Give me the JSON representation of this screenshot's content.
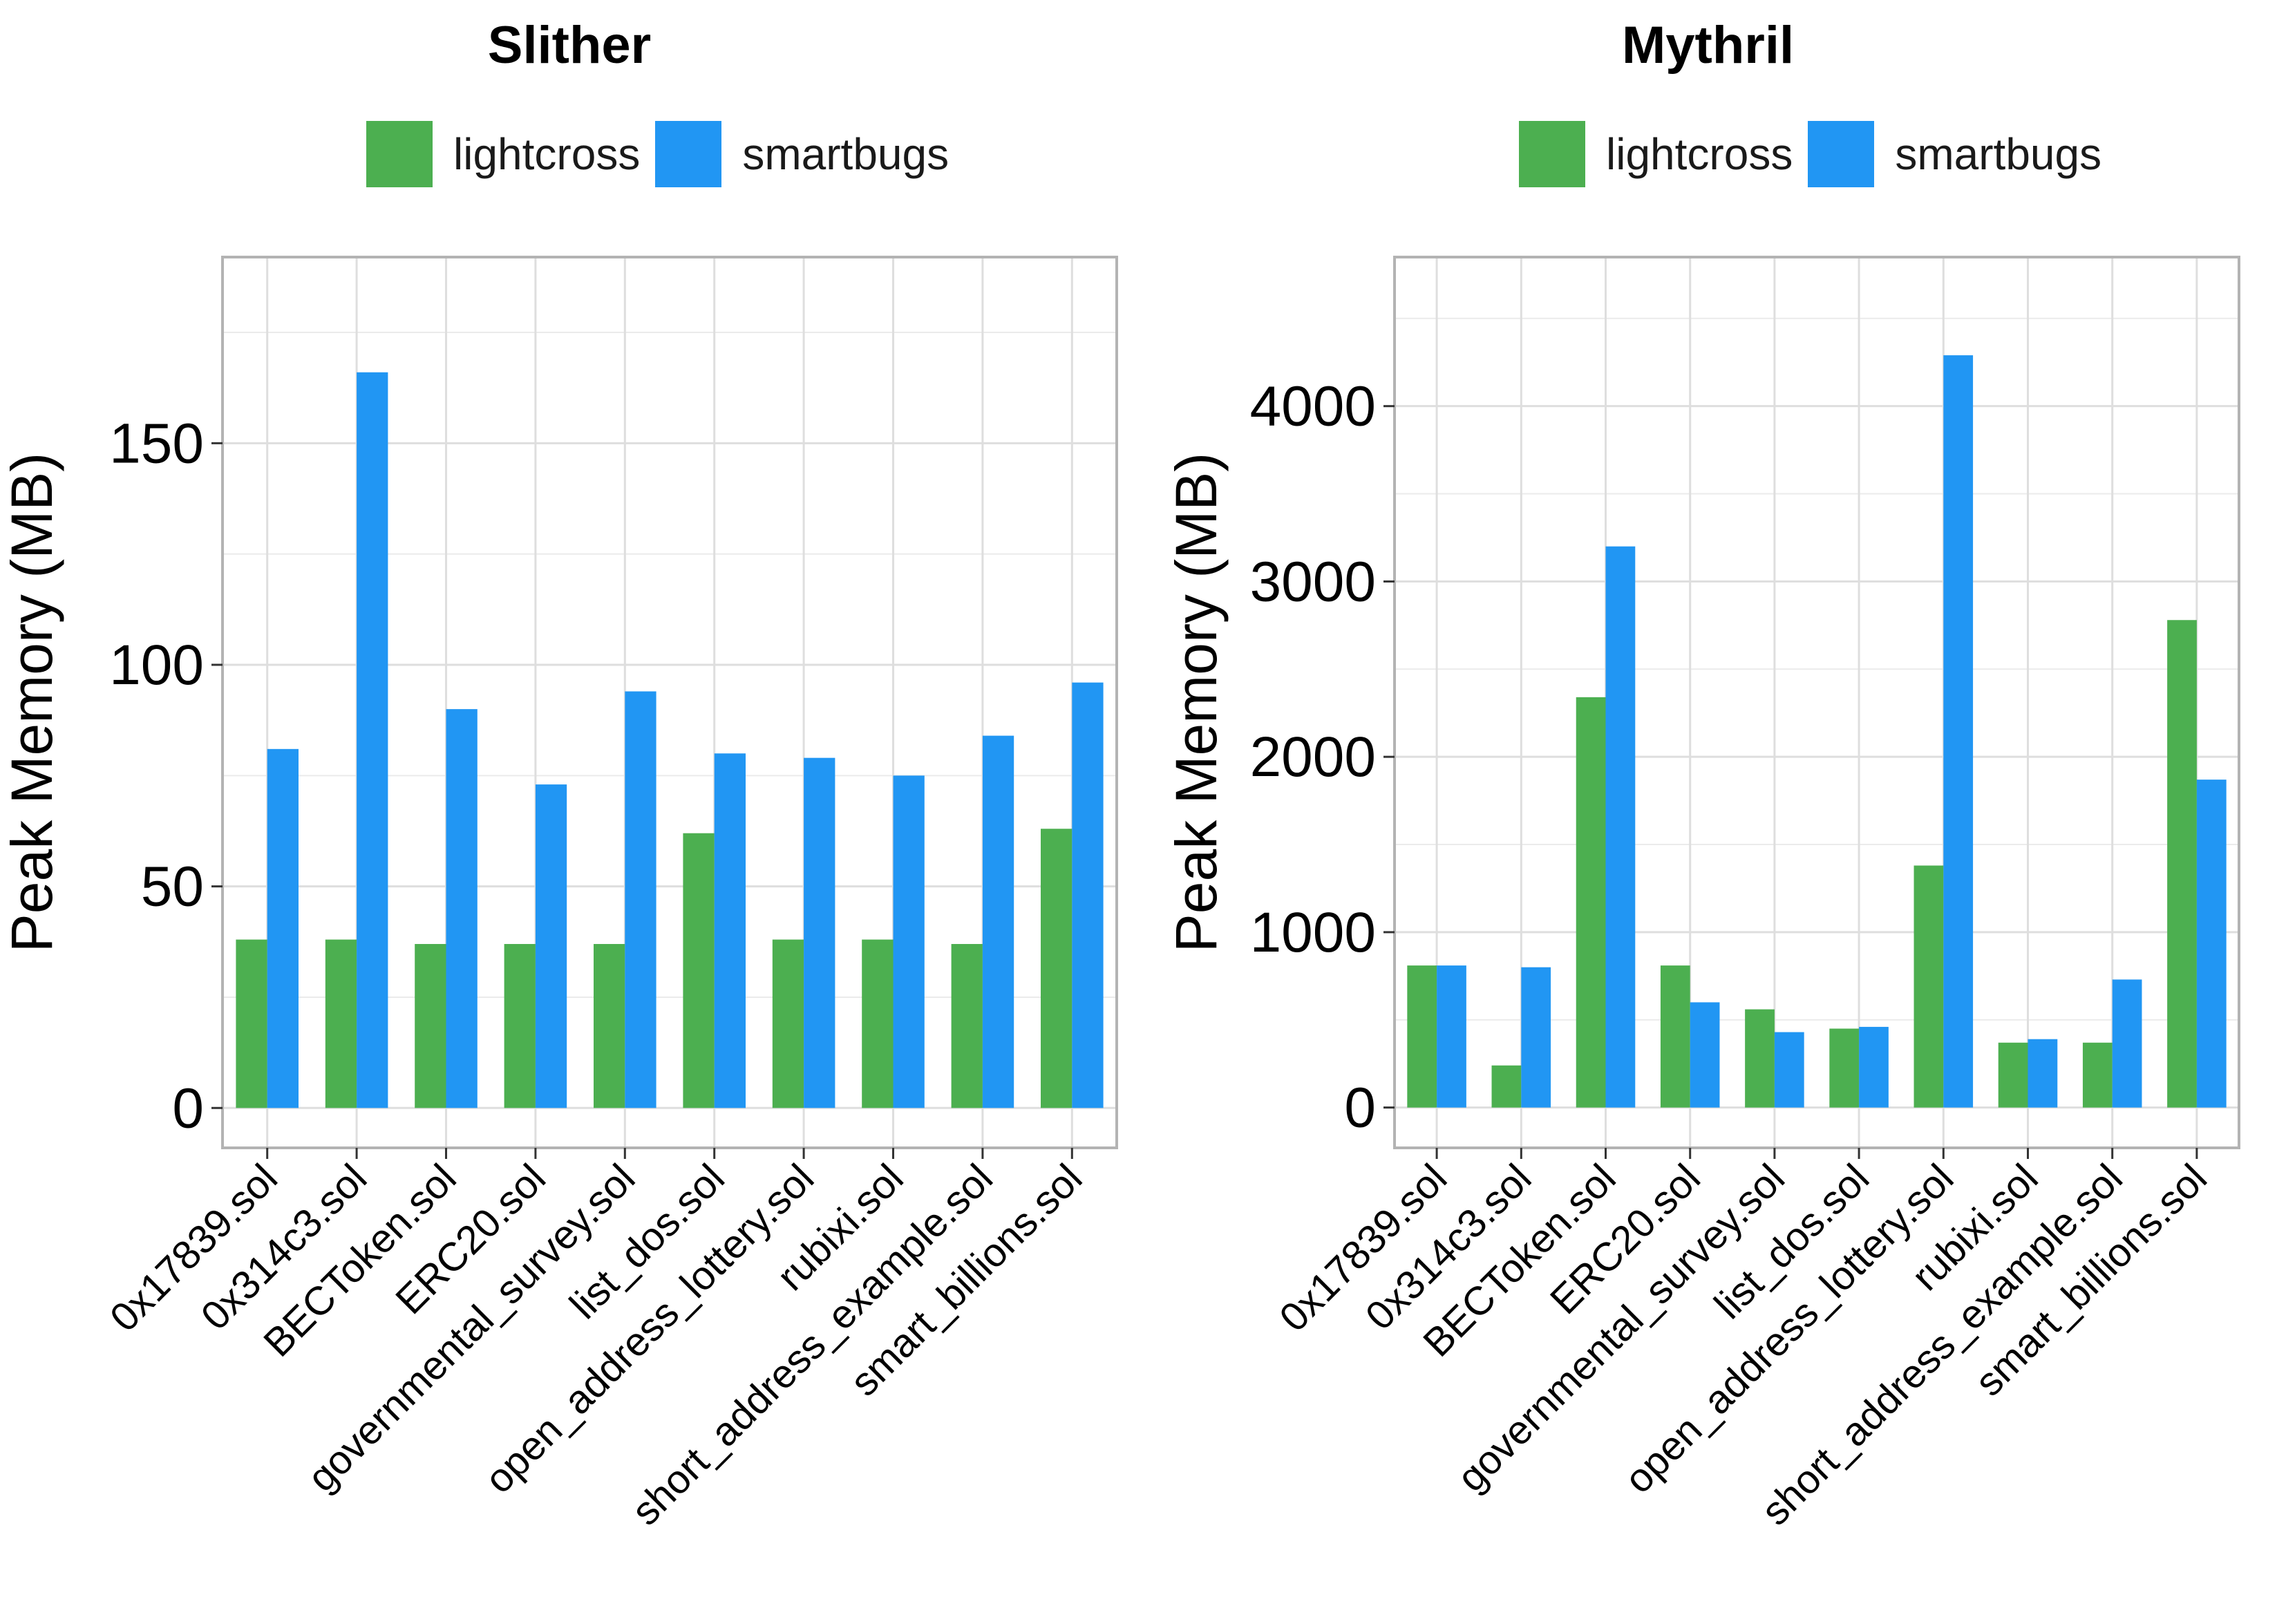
{
  "chart_data": [
    {
      "type": "bar",
      "title": "Slither",
      "ylabel": "Peak Memory (MB)",
      "xlabel": "",
      "ylim": [
        -9,
        192
      ],
      "yticks": [
        0,
        50,
        100,
        150
      ],
      "legend_position": "top",
      "categories": [
        "0x17839.sol",
        "0x314c3.sol",
        "BECToken.sol",
        "ERC20.sol",
        "governmental_survey.sol",
        "list_dos.sol",
        "open_address_lottery.sol",
        "rubixi.sol",
        "short_address_example.sol",
        "smart_billions.sol"
      ],
      "series": [
        {
          "name": "lightcross",
          "color": "#4caf50",
          "values": [
            38,
            38,
            37,
            37,
            37,
            62,
            38,
            38,
            37,
            63
          ]
        },
        {
          "name": "smartbugs",
          "color": "#2196f3",
          "values": [
            81,
            166,
            90,
            73,
            94,
            80,
            79,
            75,
            84,
            96
          ]
        }
      ]
    },
    {
      "type": "bar",
      "title": "Mythril",
      "ylabel": "Peak Memory (MB)",
      "xlabel": "",
      "ylim": [
        -230,
        4850
      ],
      "yticks": [
        0,
        1000,
        2000,
        3000,
        4000
      ],
      "legend_position": "top",
      "categories": [
        "0x17839.sol",
        "0x314c3.sol",
        "BECToken.sol",
        "ERC20.sol",
        "governmental_survey.sol",
        "list_dos.sol",
        "open_address_lottery.sol",
        "rubixi.sol",
        "short_address_example.sol",
        "smart_billions.sol"
      ],
      "series": [
        {
          "name": "lightcross",
          "color": "#4caf50",
          "values": [
            810,
            240,
            2340,
            810,
            560,
            450,
            1380,
            370,
            370,
            2780
          ]
        },
        {
          "name": "smartbugs",
          "color": "#2196f3",
          "values": [
            810,
            800,
            3200,
            600,
            430,
            460,
            4290,
            390,
            730,
            1870
          ]
        }
      ]
    }
  ]
}
